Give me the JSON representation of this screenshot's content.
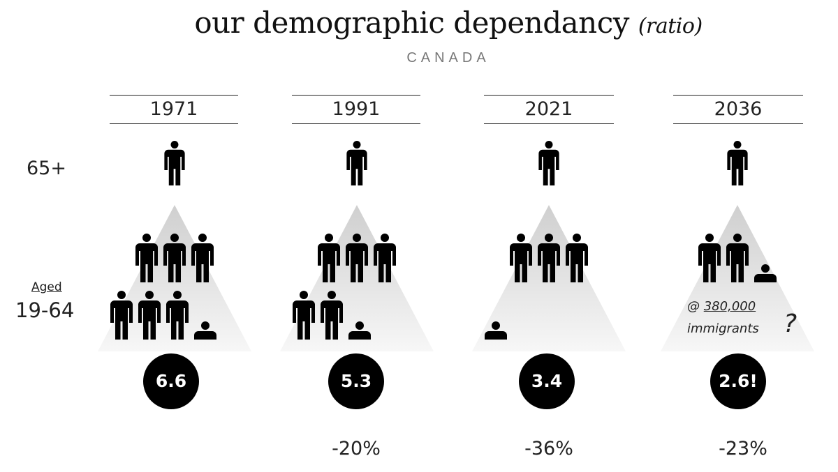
{
  "title": {
    "main": "our demographic dependancy",
    "qualifier": "(ratio)"
  },
  "subtitle": "CANADA",
  "row_labels": {
    "seniors": "65+",
    "working_prefix": "Aged",
    "working_range": "19-64"
  },
  "chart_data": {
    "type": "pictogram",
    "title": "our demographic dependancy (ratio)",
    "subtitle": "CANADA",
    "categories": [
      "1971",
      "1991",
      "2021",
      "2036"
    ],
    "values": [
      6.6,
      5.3,
      3.4,
      2.6
    ],
    "value_labels": [
      "6.6",
      "5.3",
      "3.4",
      "2.6!"
    ],
    "changes": [
      "",
      "-20%",
      "-36%",
      "-23%"
    ],
    "seniors_per_column": 1,
    "annotation": {
      "prefix": "@",
      "count": "380,000",
      "text": "immigrants",
      "mark": "?"
    }
  },
  "colors": {
    "figure": "#000000",
    "circle": "#000000",
    "mountain": "#dcdcdc",
    "text": "#222222"
  }
}
